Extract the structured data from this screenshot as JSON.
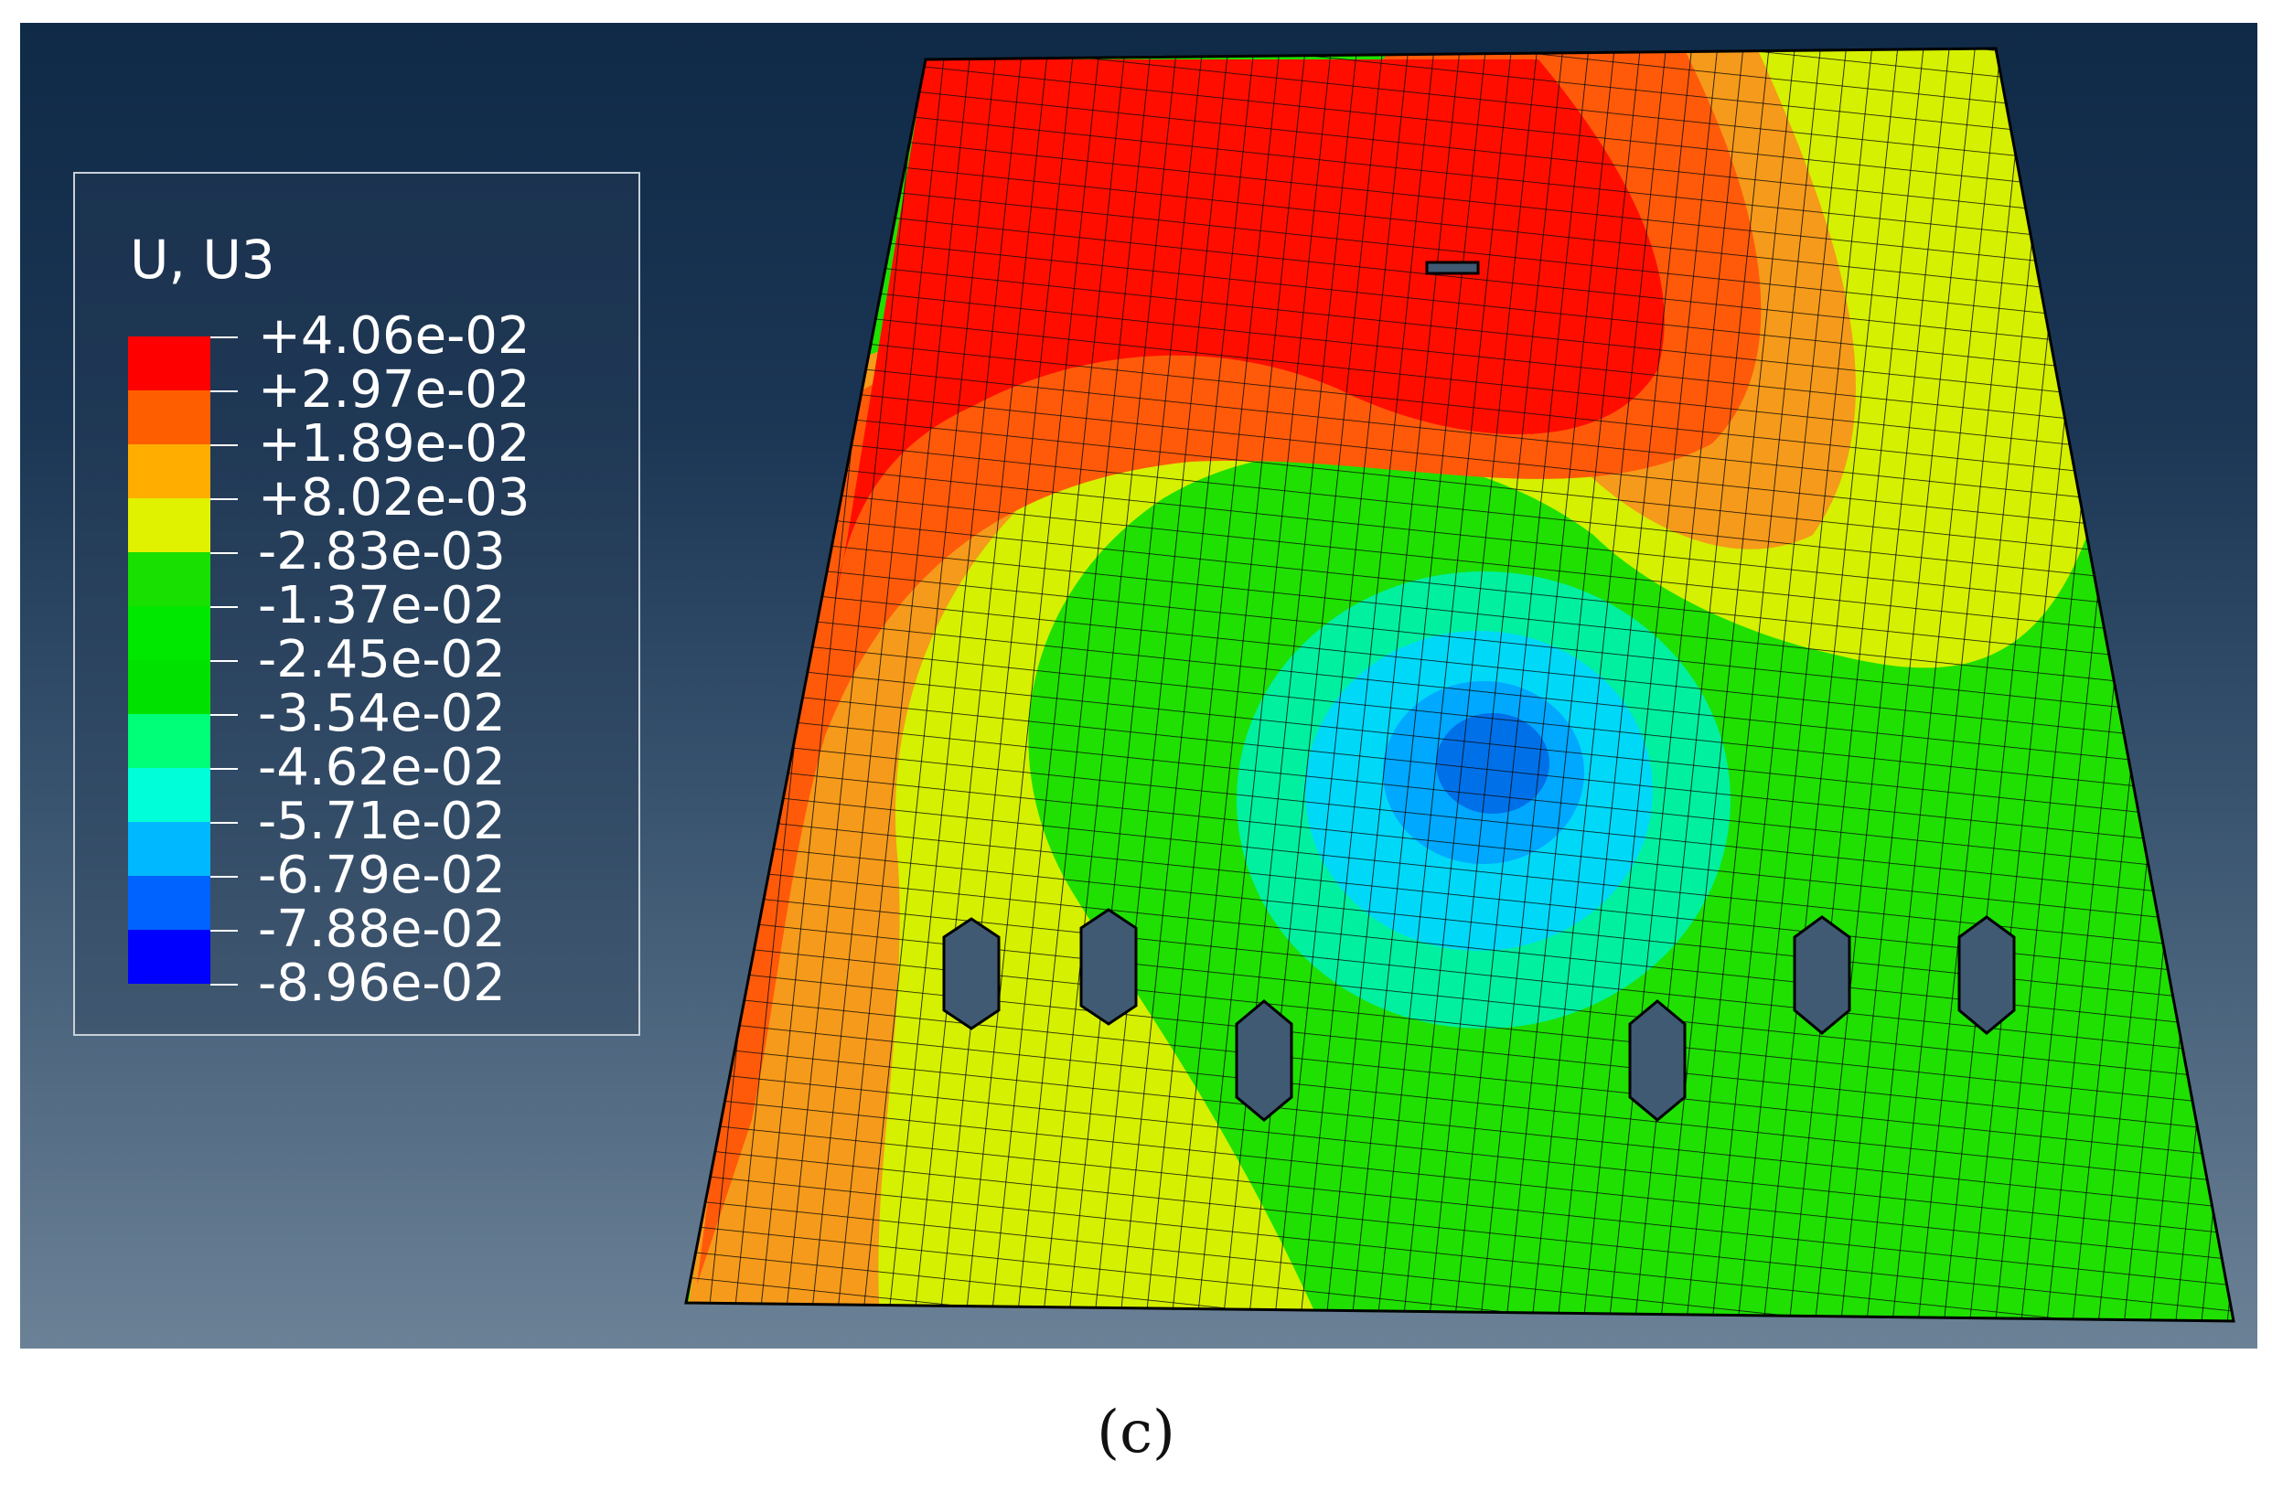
{
  "legend": {
    "title": "U, U3",
    "colors": [
      "#ff0000",
      "#ff5e00",
      "#ffae00",
      "#e0f200",
      "#18e000",
      "#00e800",
      "#00e100",
      "#00ff78",
      "#00ffd8",
      "#00b8ff",
      "#0062ff",
      "#0000ff"
    ],
    "labels": [
      "+4.06e-02",
      "+2.97e-02",
      "+1.89e-02",
      "+8.02e-03",
      "-2.83e-03",
      "-1.37e-02",
      "-2.45e-02",
      "-3.54e-02",
      "-4.62e-02",
      "-5.71e-02",
      "-6.79e-02",
      "-7.88e-02",
      "-8.96e-02"
    ]
  },
  "contour_colors": {
    "red": "#ff0e00",
    "orange_red": "#ff5a0a",
    "orange": "#f59a1a",
    "yellow": "#d5f000",
    "green": "#1fe000",
    "teal": "#00f0a0",
    "cyan": "#00d8f8",
    "light_blue": "#00a8ff",
    "blue": "#0070e8"
  },
  "caption": "(c)"
}
